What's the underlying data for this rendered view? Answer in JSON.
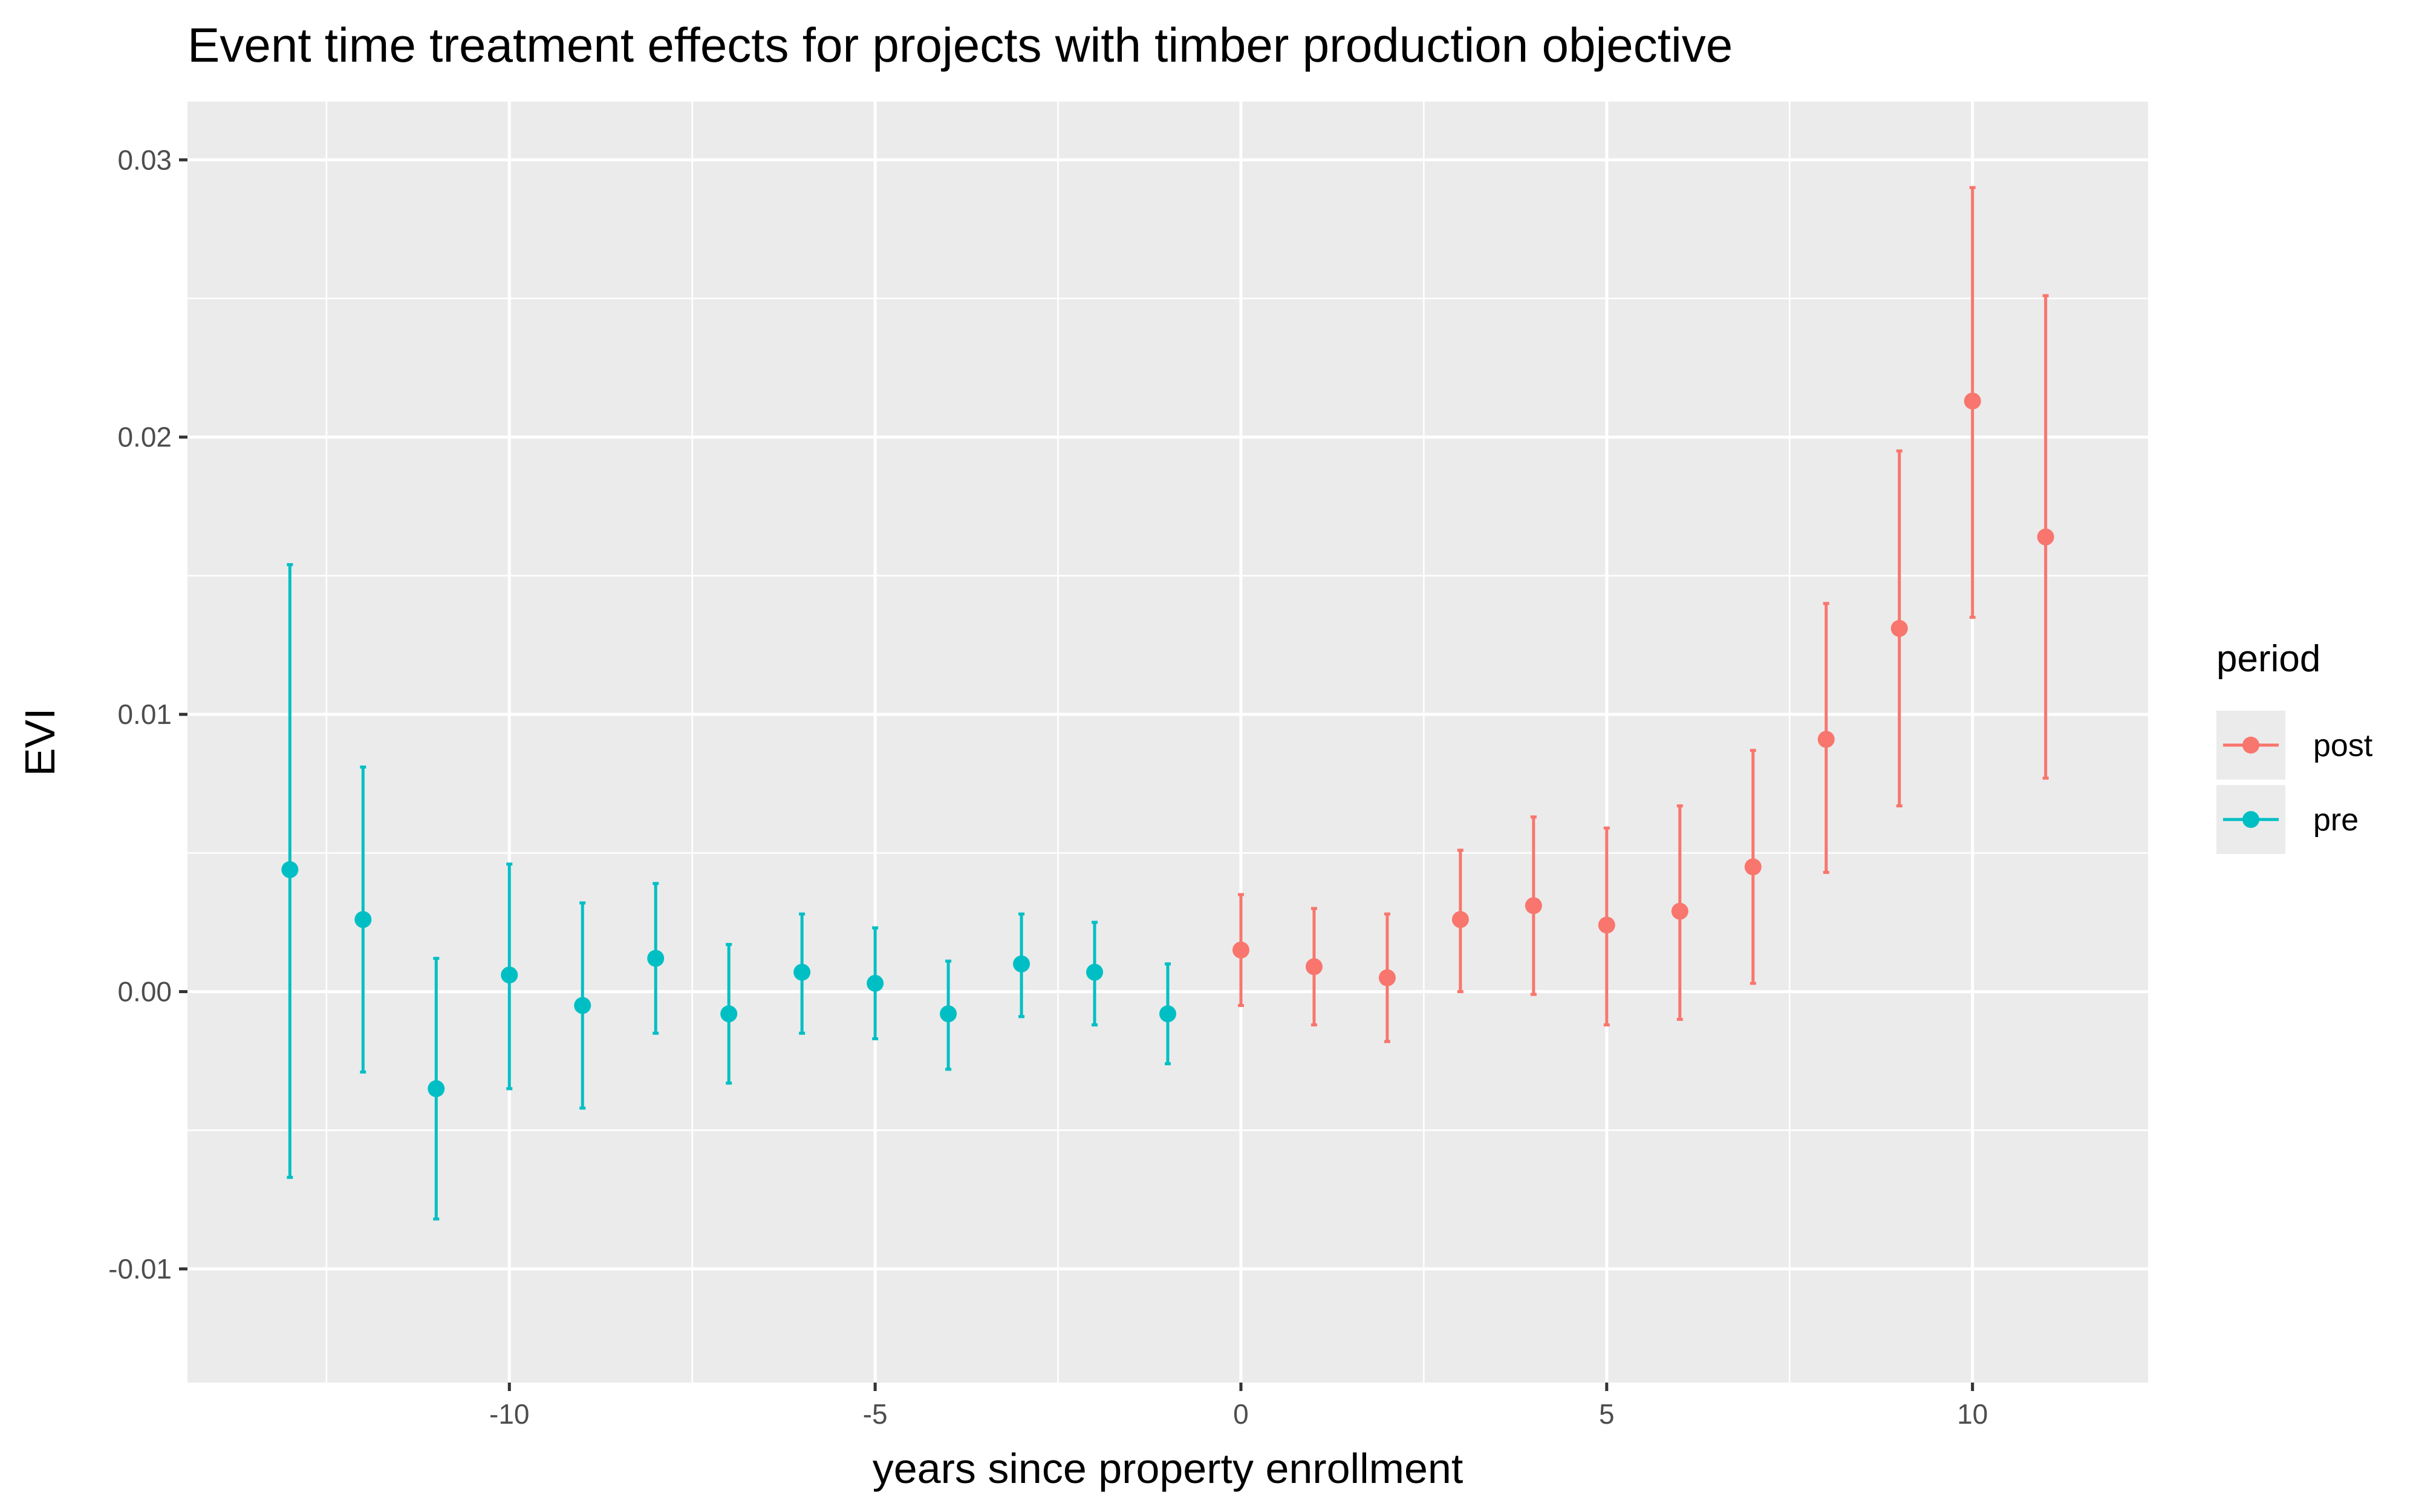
{
  "chart_data": {
    "type": "scatter",
    "title": "Event time treatment effects for projects with timber production objective",
    "xlabel": "years since property enrollment",
    "ylabel": "EVI",
    "xlim": [
      -14.4,
      12.4
    ],
    "ylim": [
      -0.0141,
      0.0321
    ],
    "x_ticks": [
      -10,
      -5,
      0,
      5,
      10
    ],
    "y_ticks": [
      -0.01,
      0.0,
      0.01,
      0.02,
      0.03
    ],
    "x_tick_labels": [
      "-10",
      "-5",
      "0",
      "5",
      "10"
    ],
    "y_tick_labels": [
      "-0.01",
      "0.00",
      "0.01",
      "0.02",
      "0.03"
    ],
    "grid": true,
    "legend": {
      "title": "period",
      "position": "right",
      "entries": [
        {
          "name": "post",
          "color": "#F8766D"
        },
        {
          "name": "pre",
          "color": "#00BFC4"
        }
      ]
    },
    "series": [
      {
        "name": "post",
        "color": "#F8766D",
        "points": [
          {
            "x": 0,
            "y": 0.0015,
            "lo": -0.0005,
            "hi": 0.0035
          },
          {
            "x": 1,
            "y": 0.0009,
            "lo": -0.0012,
            "hi": 0.003
          },
          {
            "x": 2,
            "y": 0.0005,
            "lo": -0.0018,
            "hi": 0.0028
          },
          {
            "x": 3,
            "y": 0.0026,
            "lo": 0.0,
            "hi": 0.0051
          },
          {
            "x": 4,
            "y": 0.0031,
            "lo": -0.0001,
            "hi": 0.0063
          },
          {
            "x": 5,
            "y": 0.0024,
            "lo": -0.0012,
            "hi": 0.0059
          },
          {
            "x": 6,
            "y": 0.0029,
            "lo": -0.001,
            "hi": 0.0067
          },
          {
            "x": 7,
            "y": 0.0045,
            "lo": 0.0003,
            "hi": 0.0087
          },
          {
            "x": 8,
            "y": 0.0091,
            "lo": 0.0043,
            "hi": 0.014
          },
          {
            "x": 9,
            "y": 0.0131,
            "lo": 0.0067,
            "hi": 0.0195
          },
          {
            "x": 10,
            "y": 0.0213,
            "lo": 0.0135,
            "hi": 0.029
          },
          {
            "x": 11,
            "y": 0.0164,
            "lo": 0.0077,
            "hi": 0.0251
          }
        ]
      },
      {
        "name": "pre",
        "color": "#00BFC4",
        "points": [
          {
            "x": -13,
            "y": 0.0044,
            "lo": -0.0067,
            "hi": 0.0154
          },
          {
            "x": -12,
            "y": 0.0026,
            "lo": -0.0029,
            "hi": 0.0081
          },
          {
            "x": -11,
            "y": -0.0035,
            "lo": -0.0082,
            "hi": 0.0012
          },
          {
            "x": -10,
            "y": 0.0006,
            "lo": -0.0035,
            "hi": 0.0046
          },
          {
            "x": -9,
            "y": -0.0005,
            "lo": -0.0042,
            "hi": 0.0032
          },
          {
            "x": -8,
            "y": 0.0012,
            "lo": -0.0015,
            "hi": 0.0039
          },
          {
            "x": -7,
            "y": -0.0008,
            "lo": -0.0033,
            "hi": 0.0017
          },
          {
            "x": -6,
            "y": 0.0007,
            "lo": -0.0015,
            "hi": 0.0028
          },
          {
            "x": -5,
            "y": 0.0003,
            "lo": -0.0017,
            "hi": 0.0023
          },
          {
            "x": -4,
            "y": -0.0008,
            "lo": -0.0028,
            "hi": 0.0011
          },
          {
            "x": -3,
            "y": 0.001,
            "lo": -0.0009,
            "hi": 0.0028
          },
          {
            "x": -2,
            "y": 0.0007,
            "lo": -0.0012,
            "hi": 0.0025
          },
          {
            "x": -1,
            "y": -0.0008,
            "lo": -0.0026,
            "hi": 0.001
          }
        ]
      }
    ]
  }
}
